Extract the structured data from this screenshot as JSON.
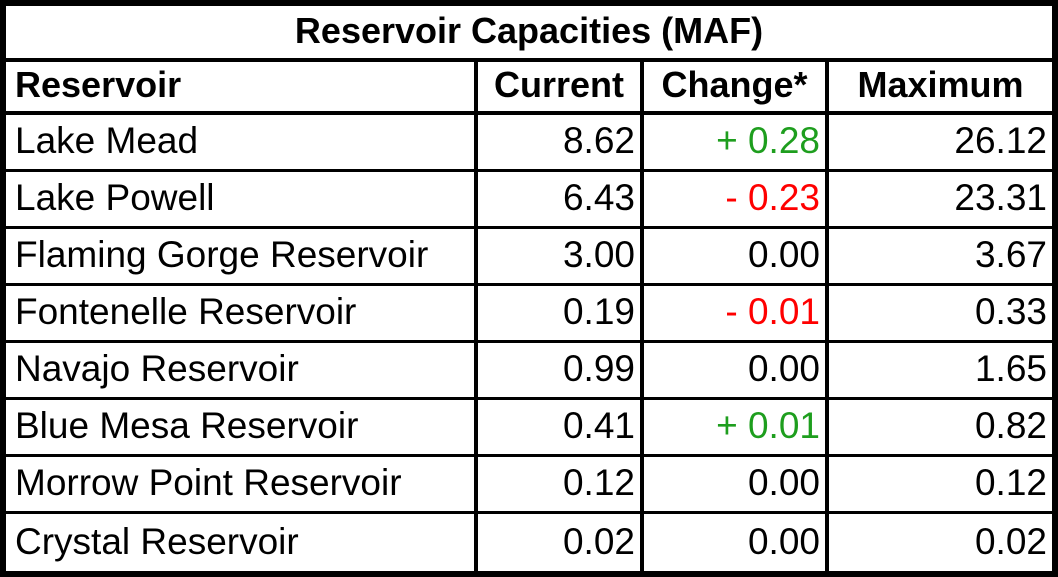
{
  "table": {
    "title": "Reservoir Capacities (MAF)",
    "columns": [
      "Reservoir",
      "Current",
      "Change*",
      "Maximum"
    ],
    "rows": [
      {
        "name": "Lake Mead",
        "current": "8.62",
        "change": "+ 0.28",
        "change_dir": "up",
        "maximum": "26.12"
      },
      {
        "name": "Lake Powell",
        "current": "6.43",
        "change": "- 0.23",
        "change_dir": "down",
        "maximum": "23.31"
      },
      {
        "name": "Flaming Gorge Reservoir",
        "current": "3.00",
        "change": "0.00",
        "change_dir": "none",
        "maximum": "3.67"
      },
      {
        "name": "Fontenelle Reservoir",
        "current": "0.19",
        "change": "- 0.01",
        "change_dir": "down",
        "maximum": "0.33"
      },
      {
        "name": "Navajo Reservoir",
        "current": "0.99",
        "change": "0.00",
        "change_dir": "none",
        "maximum": "1.65"
      },
      {
        "name": "Blue Mesa Reservoir",
        "current": "0.41",
        "change": "+ 0.01",
        "change_dir": "up",
        "maximum": "0.82"
      },
      {
        "name": "Morrow Point Reservoir",
        "current": "0.12",
        "change": "0.00",
        "change_dir": "none",
        "maximum": "0.12"
      },
      {
        "name": "Crystal Reservoir",
        "current": "0.02",
        "change": "0.00",
        "change_dir": "none",
        "maximum": "0.02"
      }
    ],
    "colors": {
      "increase": "#1E9E1E",
      "decrease": "#FF0000",
      "text": "#000000",
      "border": "#000000",
      "background": "#FFFFFF"
    }
  },
  "chart_data": {
    "type": "table",
    "title": "Reservoir Capacities (MAF)",
    "columns": [
      "Reservoir",
      "Current",
      "Change*",
      "Maximum"
    ],
    "rows": [
      {
        "reservoir": "Lake Mead",
        "current": 8.62,
        "change": 0.28,
        "maximum": 26.12
      },
      {
        "reservoir": "Lake Powell",
        "current": 6.43,
        "change": -0.23,
        "maximum": 23.31
      },
      {
        "reservoir": "Flaming Gorge Reservoir",
        "current": 3.0,
        "change": 0.0,
        "maximum": 3.67
      },
      {
        "reservoir": "Fontenelle Reservoir",
        "current": 0.19,
        "change": -0.01,
        "maximum": 0.33
      },
      {
        "reservoir": "Navajo Reservoir",
        "current": 0.99,
        "change": 0.0,
        "maximum": 1.65
      },
      {
        "reservoir": "Blue Mesa Reservoir",
        "current": 0.41,
        "change": 0.01,
        "maximum": 0.82
      },
      {
        "reservoir": "Morrow Point Reservoir",
        "current": 0.12,
        "change": 0.0,
        "maximum": 0.12
      },
      {
        "reservoir": "Crystal Reservoir",
        "current": 0.02,
        "change": 0.0,
        "maximum": 0.02
      }
    ]
  }
}
